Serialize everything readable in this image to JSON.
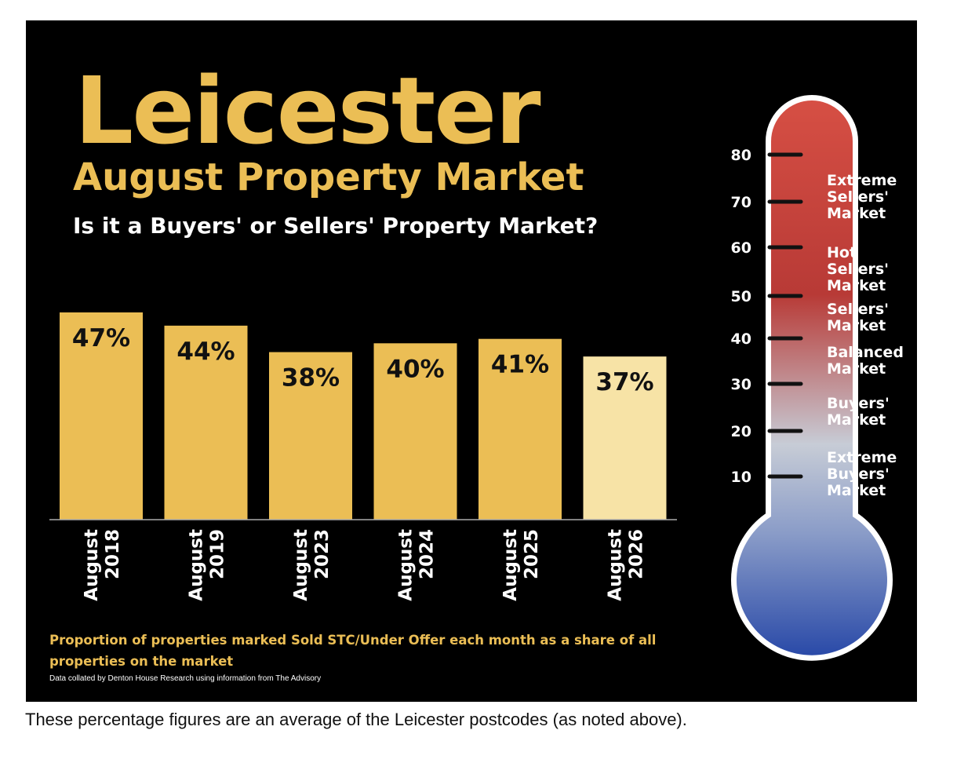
{
  "header": {
    "title": "Leicester",
    "subtitle": "August Property Market",
    "question": "Is it a Buyers' or Sellers' Property Market?"
  },
  "chart_data": [
    {
      "type": "bar",
      "categories": [
        "August 2018",
        "August 2019",
        "August 2023",
        "August 2024",
        "August 2025",
        "August 2026"
      ],
      "category_lines": [
        [
          "August",
          "2018"
        ],
        [
          "August",
          "2019"
        ],
        [
          "August",
          "2023"
        ],
        [
          "August",
          "2024"
        ],
        [
          "August",
          "2025"
        ],
        [
          "August",
          "2026"
        ]
      ],
      "values": [
        47,
        44,
        38,
        40,
        41,
        37
      ],
      "data_labels": [
        "47%",
        "44%",
        "38%",
        "40%",
        "41%",
        "37%"
      ],
      "unit": "%",
      "ylim": [
        0,
        47
      ],
      "grid": false,
      "bar_colors": [
        "#ebbe55",
        "#ebbe55",
        "#ebbe55",
        "#ebbe55",
        "#ebbe55",
        "#f7e3a6"
      ]
    },
    {
      "type": "gauge",
      "scale_ticks": [
        80,
        70,
        60,
        50,
        40,
        30,
        20,
        10
      ],
      "zones": [
        {
          "label": "Extreme\nSellers'\nMarket"
        },
        {
          "label": "Hot\nSellers'\nMarket"
        },
        {
          "label": "Sellers'\nMarket"
        },
        {
          "label": "Balanced\nMarket"
        },
        {
          "label": "Buyers'\nMarket"
        },
        {
          "label": "Extreme\n Buyers'\nMarket"
        }
      ],
      "colors": {
        "top": "#d64f44",
        "mid_red": "#b83a36",
        "mid": "#c7ccd6",
        "bottom": "#2a4aa8"
      }
    }
  ],
  "caption": "Proportion of properties marked Sold STC/Under Offer each month as a share of all properties on the market",
  "source": "Data collated by Denton House Research using information from The Advisory",
  "footnote": "These percentage figures are an average of the Leicester postcodes (as noted above).",
  "colors": {
    "accent": "#ebbe55",
    "highlight_bar": "#f7e3a6",
    "background": "#000000"
  }
}
